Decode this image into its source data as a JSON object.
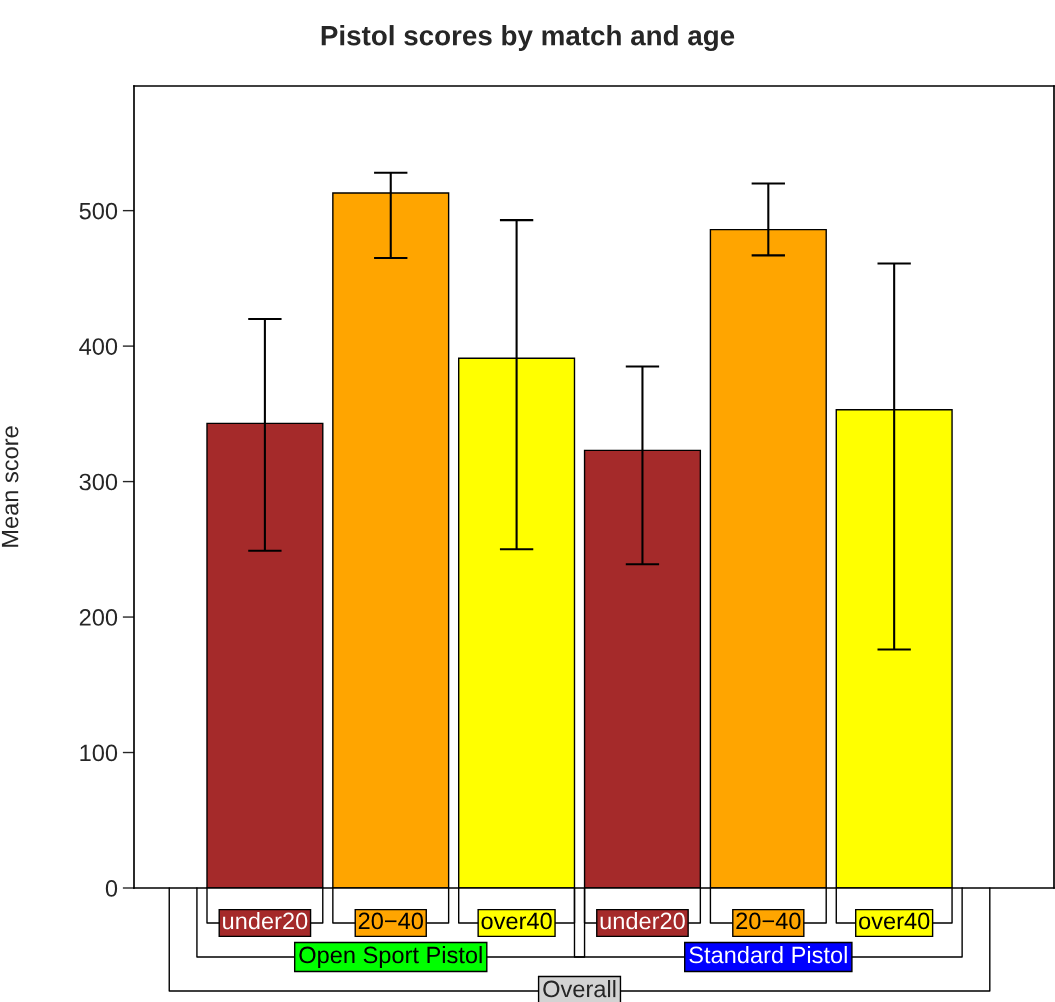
{
  "chart_data": {
    "type": "bar",
    "title": "Pistol scores by match and age",
    "ylabel": "Mean score",
    "categories": [
      "under20",
      "20−40",
      "over40",
      "under20",
      "20−40",
      "over40"
    ],
    "values": [
      343,
      513,
      391,
      323,
      486,
      353
    ],
    "colors": [
      "#a52a2a",
      "#ffa500",
      "#ffff00",
      "#a52a2a",
      "#ffa500",
      "#ffff00"
    ],
    "errors": [
      [
        249,
        420
      ],
      [
        465,
        528
      ],
      [
        250,
        493
      ],
      [
        239,
        385
      ],
      [
        467,
        520
      ],
      [
        176,
        461
      ]
    ],
    "annotations": [
      "Open Sport Pistol",
      "Standard Pistol",
      "Overall"
    ],
    "ylim": [
      0,
      592
    ],
    "yticks": [
      0,
      100,
      200,
      300,
      400,
      500
    ],
    "grid": false,
    "legend": false
  }
}
